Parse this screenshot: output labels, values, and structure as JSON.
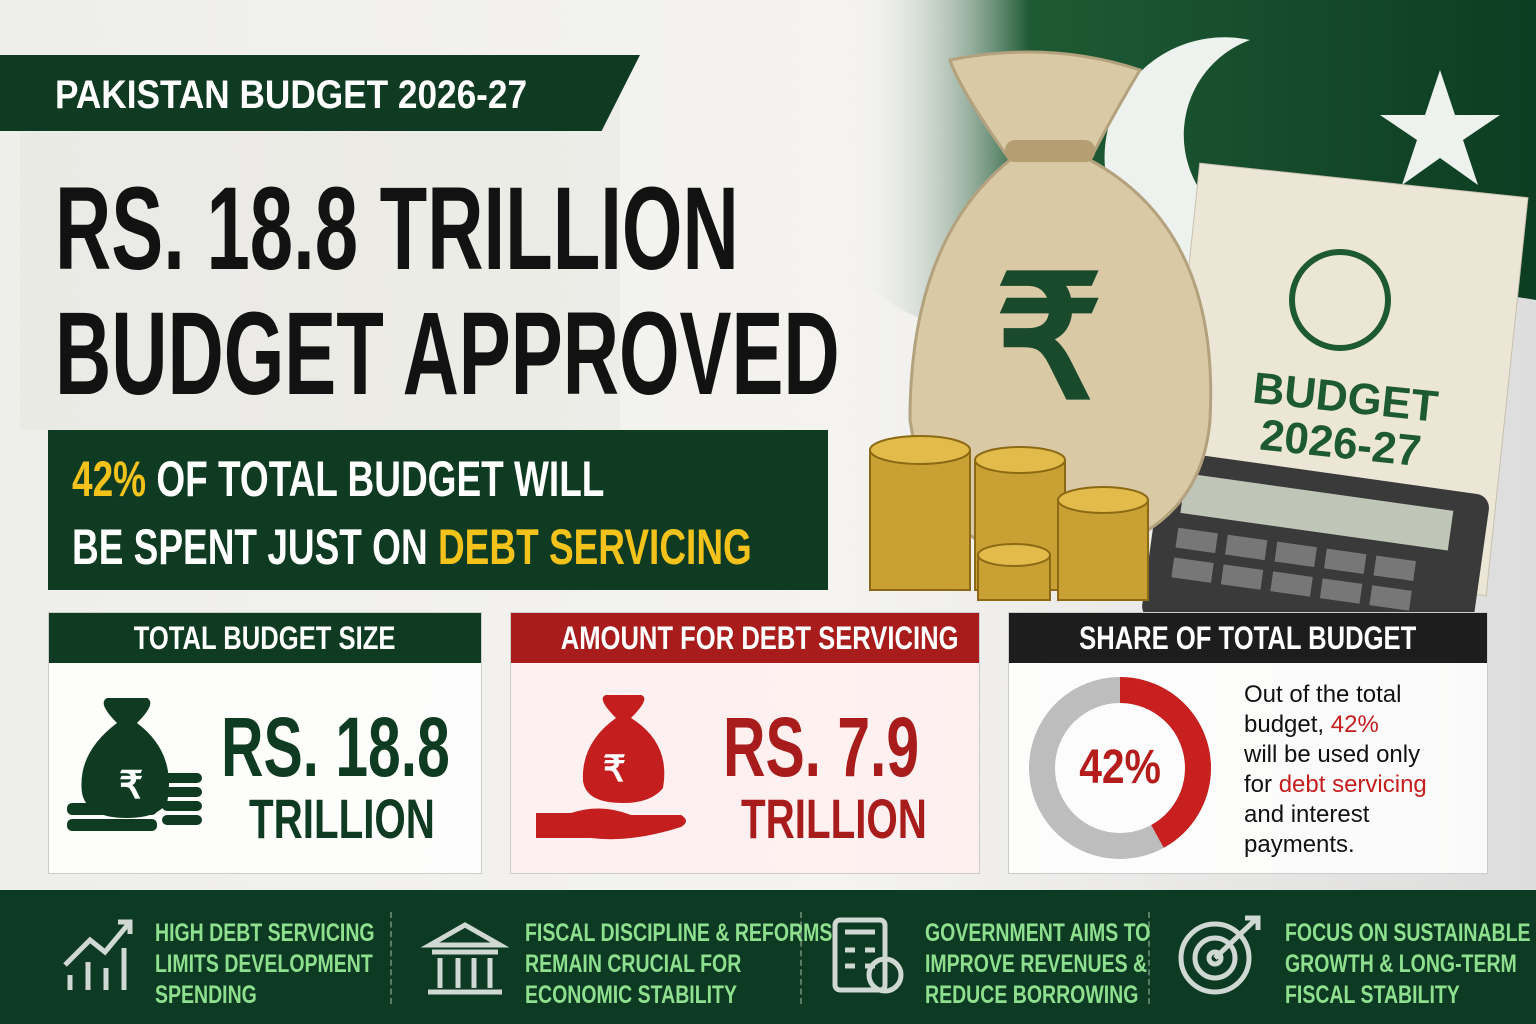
{
  "header": {
    "tag": "PAKISTAN BUDGET 2026-27",
    "title_line1": "RS. 18.8 TRILLION",
    "title_line2": "BUDGET APPROVED"
  },
  "highlight": {
    "parts": [
      "42%",
      " OF TOTAL BUDGET WILL",
      "BE SPENT JUST ON ",
      "DEBT SERVICING"
    ]
  },
  "illustration": {
    "symbol": "₹",
    "book_title": "BUDGET",
    "book_year": "2026-27"
  },
  "cards": [
    {
      "title": "TOTAL BUDGET SIZE",
      "amount": "RS. 18.8",
      "unit": "TRILLION"
    },
    {
      "title": "AMOUNT FOR DEBT SERVICING",
      "amount": "RS. 7.9",
      "unit": "TRILLION"
    }
  ],
  "share": {
    "title": "SHARE OF TOTAL BUDGET",
    "percent": 42,
    "percent_label": "42%",
    "text_parts": [
      "Out of the total",
      "budget, ",
      "42%",
      "will be used only",
      "for ",
      "debt servicing",
      "and interest",
      "payments."
    ]
  },
  "footer": {
    "items": [
      [
        "HIGH DEBT SERVICING",
        "LIMITS DEVELOPMENT",
        "SPENDING"
      ],
      [
        "FISCAL DISCIPLINE & REFORMS",
        "REMAIN CRUCIAL FOR",
        "ECONOMIC STABILITY"
      ],
      [
        "GOVERNMENT AIMS TO",
        "IMPROVE REVENUES &",
        "REDUCE BORROWING"
      ],
      [
        "FOCUS ON SUSTAINABLE",
        "GROWTH & LONG-TERM",
        "FISCAL STABILITY"
      ]
    ]
  }
}
